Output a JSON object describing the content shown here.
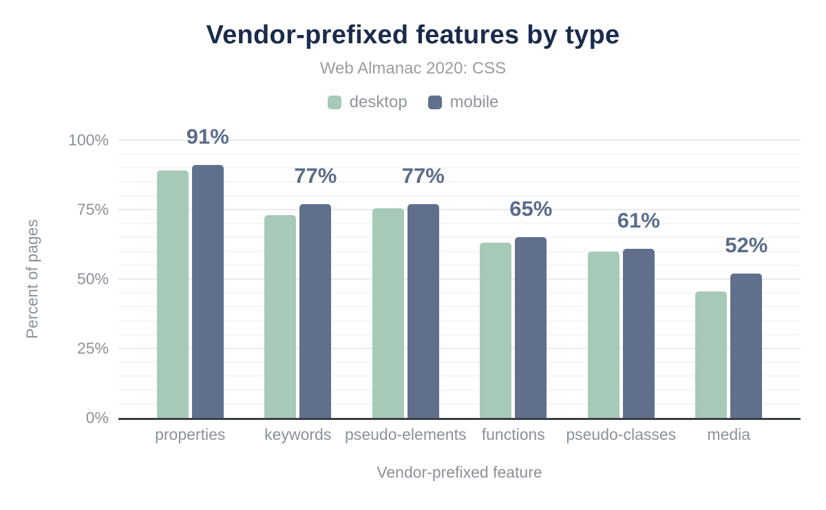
{
  "legend": [
    {
      "label": "desktop",
      "color": "#a7cab8"
    },
    {
      "label": "mobile",
      "color": "#60708c"
    }
  ],
  "chart_data": {
    "type": "bar",
    "title": "Vendor-prefixed features by type",
    "subtitle": "Web Almanac 2020: CSS",
    "xlabel": "Vendor-prefixed feature",
    "ylabel": "Percent of pages",
    "categories": [
      "properties",
      "keywords",
      "pseudo-elements",
      "functions",
      "pseudo-classes",
      "media"
    ],
    "series": [
      {
        "name": "desktop",
        "color": "#a7cab8",
        "values": [
          89,
          73,
          75.5,
          63,
          60,
          45.5
        ]
      },
      {
        "name": "mobile",
        "color": "#60708c",
        "values": [
          91,
          77,
          77,
          65,
          61,
          52
        ]
      }
    ],
    "data_labels": [
      "91%",
      "77%",
      "77%",
      "65%",
      "61%",
      "52%"
    ],
    "data_label_series": "mobile",
    "ylim": [
      0,
      100
    ],
    "y_ticks": [
      {
        "label": "0%",
        "value": 0
      },
      {
        "label": "25%",
        "value": 25
      },
      {
        "label": "50%",
        "value": 50
      },
      {
        "label": "75%",
        "value": 75
      },
      {
        "label": "100%",
        "value": 100
      }
    ],
    "grid": {
      "minor_step": 5,
      "major_step": 25,
      "visible": true
    },
    "legend_position": "top"
  },
  "colors": {
    "background": "#ffffff",
    "title_text": "#1a2b4b",
    "subtitle_text": "#9c9c9c",
    "axis_text": "#8b9198",
    "data_label_text": "#5b6c8b",
    "axis_line": "#3b3f46",
    "gridline_minor": "#f5f5f5",
    "gridline_major": "#eaeaea",
    "desktop_bar": "#a7cab8",
    "mobile_bar": "#60708c"
  }
}
